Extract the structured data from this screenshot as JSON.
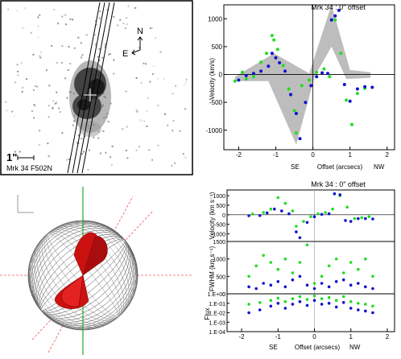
{
  "image_panel": {
    "scale_label": "1\"",
    "caption": "Mrk 34 F502N",
    "compass_north": "N",
    "compass_east": "E"
  },
  "model_panel": {},
  "colors": {
    "observed": "#22dd22",
    "fit": "#1111cc",
    "model_band": "#bdbdbd",
    "cone": "#cc1111",
    "axis_line": "#22aa22",
    "ref_line": "#ee5555"
  },
  "chart_data": [
    {
      "type": "scatter",
      "title": "Mrk 34 : 0\" offset",
      "ylabel": "Velocity (km/s)",
      "xlabel": "Offset (arcsecs)",
      "x_left_label": "SE",
      "x_right_label": "NW",
      "xlim": [
        -2.4,
        2.2
      ],
      "ylim": [
        -1350,
        1250
      ],
      "xticks": [
        -2,
        -1,
        0,
        1,
        2
      ],
      "yticks": [
        -1000,
        -500,
        0,
        500,
        1000
      ],
      "model_band_upper": [
        {
          "x": -2.1,
          "y": -40
        },
        {
          "x": -1.05,
          "y": 380
        },
        {
          "x": -0.1,
          "y": 20
        },
        {
          "x": 0.5,
          "y": 1250
        },
        {
          "x": 1.0,
          "y": 80
        },
        {
          "x": 1.55,
          "y": 40
        }
      ],
      "model_band_lower": [
        {
          "x": 1.55,
          "y": -60
        },
        {
          "x": 0.9,
          "y": -80
        },
        {
          "x": 0.5,
          "y": 500
        },
        {
          "x": 0.05,
          "y": -30
        },
        {
          "x": -0.45,
          "y": -1260
        },
        {
          "x": -1.2,
          "y": -120
        },
        {
          "x": -2.1,
          "y": -120
        }
      ],
      "series": [
        {
          "x": [
            -2.1,
            -1.9,
            -1.8,
            -1.6,
            -1.4,
            -1.25,
            -1.1,
            -1.05,
            -0.95,
            -0.8,
            -0.65,
            -0.5,
            -0.45,
            -0.3,
            -0.1,
            0.1,
            0.3,
            0.45,
            0.6,
            0.75,
            0.9,
            1.05,
            1.2,
            1.4
          ],
          "values": [
            -120,
            40,
            -80,
            -40,
            220,
            380,
            700,
            620,
            450,
            160,
            -260,
            -650,
            -1050,
            -200,
            -100,
            40,
            100,
            -40,
            980,
            380,
            -460,
            -900,
            -340,
            -250
          ]
        },
        {
          "x": [
            -2.0,
            -1.8,
            -1.6,
            -1.4,
            -1.2,
            -1.1,
            -1.0,
            -0.9,
            -0.75,
            -0.6,
            -0.45,
            -0.35,
            -0.2,
            -0.05,
            0.1,
            0.25,
            0.4,
            0.5,
            0.6,
            0.7,
            0.85,
            1.0,
            1.2,
            1.4,
            1.6
          ],
          "values": [
            -100,
            -20,
            20,
            60,
            150,
            380,
            300,
            210,
            60,
            -360,
            -700,
            -1150,
            -500,
            -200,
            -40,
            30,
            20,
            980,
            1050,
            1150,
            -180,
            -480,
            -260,
            -220,
            -230
          ]
        }
      ]
    },
    {
      "type": "scatter",
      "title": "Mrk 34 : 0\" offset",
      "xlabel": "Offset (arcsecs)",
      "x_left_label": "SE",
      "x_right_label": "NW",
      "xlim": [
        -2.4,
        2.2
      ],
      "xticks": [
        -2,
        -1,
        0,
        1,
        2
      ],
      "panels": [
        {
          "ylabel": "Velocity (km s⁻¹)",
          "ylim": [
            -1400,
            1300
          ],
          "yticks": [
            -1000,
            -500,
            0,
            500,
            1000
          ],
          "series": [
            {
              "x": [
                -1.7,
                -1.4,
                -1.2,
                -1.0,
                -0.8,
                -0.6,
                -0.5,
                -0.3,
                -0.1,
                0.1,
                0.3,
                0.5,
                0.7,
                0.9,
                1.1,
                1.3,
                1.5
              ],
              "values": [
                40,
                120,
                300,
                900,
                600,
                200,
                -600,
                -350,
                -100,
                50,
                120,
                300,
                1000,
                400,
                -200,
                -150,
                -100
              ]
            },
            {
              "x": [
                -1.8,
                -1.5,
                -1.3,
                -1.1,
                -0.9,
                -0.7,
                -0.5,
                -0.4,
                -0.2,
                0.0,
                0.2,
                0.4,
                0.55,
                0.7,
                0.85,
                1.0,
                1.2,
                1.4,
                1.6
              ],
              "values": [
                -50,
                -40,
                100,
                300,
                200,
                50,
                -900,
                -1200,
                -400,
                -100,
                20,
                50,
                1100,
                1050,
                -300,
                -350,
                -200,
                -200,
                -220
              ]
            }
          ]
        },
        {
          "ylabel": "FWHM (km s⁻¹)",
          "ylim": [
            0,
            1500
          ],
          "yticks": [
            0,
            500,
            1000,
            1500
          ],
          "series": [
            {
              "x": [
                -1.8,
                -1.6,
                -1.4,
                -1.2,
                -1.0,
                -0.8,
                -0.6,
                -0.4,
                -0.2,
                0.0,
                0.2,
                0.4,
                0.6,
                0.8,
                1.0,
                1.2,
                1.4,
                1.6
              ],
              "values": [
                500,
                800,
                1100,
                900,
                700,
                1000,
                600,
                900,
                1400,
                300,
                500,
                800,
                1000,
                600,
                900,
                700,
                1000,
                500
              ]
            },
            {
              "x": [
                -1.8,
                -1.6,
                -1.4,
                -1.2,
                -1.0,
                -0.8,
                -0.6,
                -0.4,
                -0.2,
                0.0,
                0.2,
                0.4,
                0.6,
                0.8,
                1.0,
                1.2,
                1.4,
                1.6
              ],
              "values": [
                200,
                150,
                300,
                250,
                350,
                200,
                400,
                500,
                250,
                150,
                300,
                200,
                350,
                400,
                250,
                300,
                200,
                150
              ]
            }
          ]
        },
        {
          "ylabel": "Flux",
          "ylim_log": [
            -4,
            0
          ],
          "ytick_labels": [
            "1.E+00",
            "1.E-01",
            "1.E-02",
            "1.E-03",
            "1.E-04"
          ],
          "series": [
            {
              "x": [
                -1.8,
                -1.5,
                -1.2,
                -1.0,
                -0.8,
                -0.6,
                -0.4,
                -0.2,
                0.0,
                0.2,
                0.4,
                0.6,
                0.8,
                1.0,
                1.2,
                1.4,
                1.6
              ],
              "values": [
                0.08,
                0.12,
                0.2,
                0.35,
                0.15,
                0.3,
                0.5,
                0.25,
                0.6,
                0.3,
                0.4,
                0.2,
                0.5,
                0.15,
                0.1,
                0.08,
                0.05
              ]
            },
            {
              "x": [
                -1.8,
                -1.5,
                -1.2,
                -1.0,
                -0.8,
                -0.6,
                -0.4,
                -0.2,
                0.0,
                0.2,
                0.4,
                0.6,
                0.8,
                1.0,
                1.2,
                1.4,
                1.6
              ],
              "values": [
                0.01,
                0.02,
                0.05,
                0.1,
                0.03,
                0.08,
                0.15,
                0.06,
                0.2,
                0.08,
                0.1,
                0.04,
                0.12,
                0.03,
                0.02,
                0.015,
                0.01
              ]
            }
          ]
        }
      ]
    }
  ]
}
